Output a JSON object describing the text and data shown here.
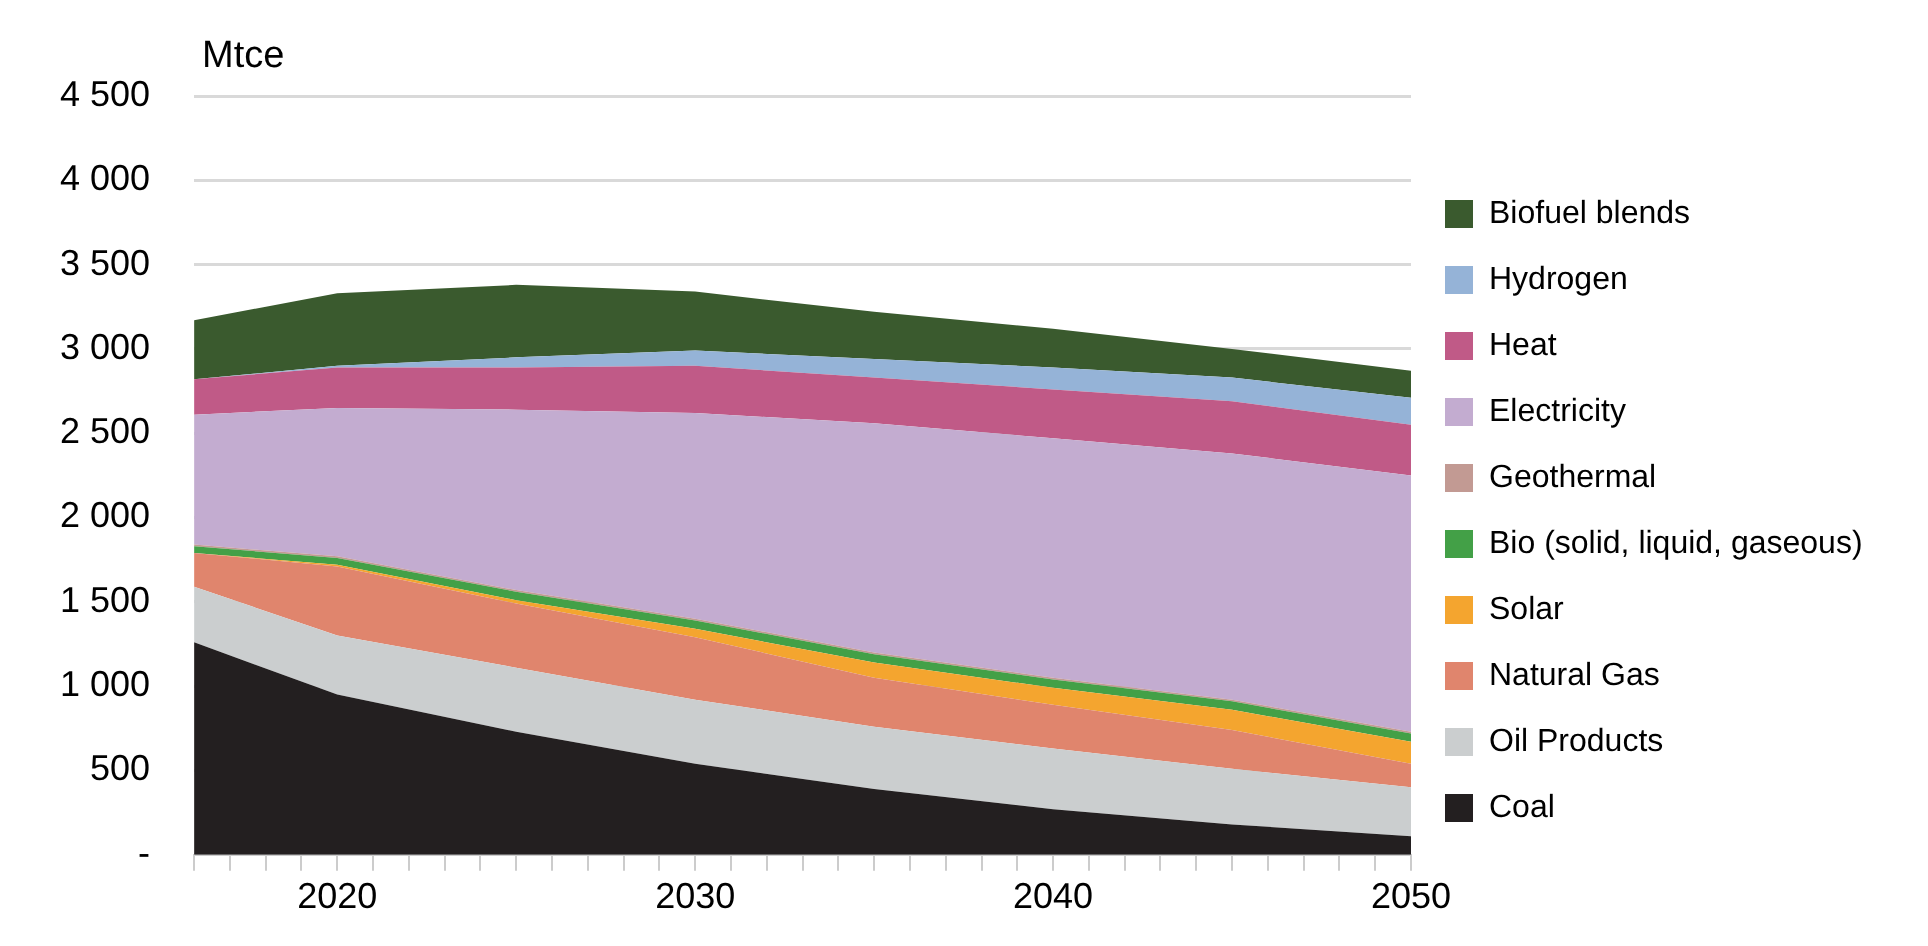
{
  "chart_data": {
    "type": "area",
    "stacked": true,
    "ylabel": "Mtce",
    "x": [
      2016,
      2020,
      2025,
      2030,
      2035,
      2040,
      2045,
      2050
    ],
    "xlim": [
      2016,
      2050
    ],
    "xticks": [
      {
        "value": 2016,
        "label": null
      },
      {
        "value": 2017,
        "label": null
      },
      {
        "value": 2018,
        "label": null
      },
      {
        "value": 2019,
        "label": null
      },
      2020,
      {
        "value": 2021,
        "label": null
      },
      {
        "value": 2022,
        "label": null
      },
      {
        "value": 2023,
        "label": null
      },
      {
        "value": 2024,
        "label": null
      },
      {
        "value": 2025,
        "label": null
      },
      {
        "value": 2026,
        "label": null
      },
      {
        "value": 2027,
        "label": null
      },
      {
        "value": 2028,
        "label": null
      },
      {
        "value": 2029,
        "label": null
      },
      2030,
      {
        "value": 2031,
        "label": null
      },
      {
        "value": 2032,
        "label": null
      },
      {
        "value": 2033,
        "label": null
      },
      {
        "value": 2034,
        "label": null
      },
      {
        "value": 2035,
        "label": null
      },
      {
        "value": 2036,
        "label": null
      },
      {
        "value": 2037,
        "label": null
      },
      {
        "value": 2038,
        "label": null
      },
      {
        "value": 2039,
        "label": null
      },
      2040,
      {
        "value": 2041,
        "label": null
      },
      {
        "value": 2042,
        "label": null
      },
      {
        "value": 2043,
        "label": null
      },
      {
        "value": 2044,
        "label": null
      },
      {
        "value": 2045,
        "label": null
      },
      {
        "value": 2046,
        "label": null
      },
      {
        "value": 2047,
        "label": null
      },
      {
        "value": 2048,
        "label": null
      },
      {
        "value": 2049,
        "label": null
      },
      2050
    ],
    "ylim": [
      0,
      4500
    ],
    "yticks": [
      {
        "value": 0,
        "label": "-"
      },
      {
        "value": 500,
        "label": "500"
      },
      {
        "value": 1000,
        "label": "1 000"
      },
      {
        "value": 1500,
        "label": "1 500"
      },
      {
        "value": 2000,
        "label": "2 000"
      },
      {
        "value": 2500,
        "label": "2 500"
      },
      {
        "value": 3000,
        "label": "3 000"
      },
      {
        "value": 3500,
        "label": "3 500"
      },
      {
        "value": 4000,
        "label": "4 000"
      },
      {
        "value": 4500,
        "label": "4 500"
      }
    ],
    "grid": "y",
    "legend": "right",
    "series": [
      {
        "name": "Coal",
        "color": "#231f20",
        "values": [
          1260,
          950,
          730,
          540,
          390,
          270,
          180,
          110
        ]
      },
      {
        "name": "Oil Products",
        "color": "#cbcecf",
        "values": [
          330,
          350,
          380,
          380,
          370,
          360,
          330,
          290
        ]
      },
      {
        "name": "Natural Gas",
        "color": "#e0856d",
        "values": [
          200,
          410,
          380,
          370,
          290,
          260,
          230,
          140
        ]
      },
      {
        "name": "Solar",
        "color": "#f4a52f",
        "values": [
          0,
          10,
          20,
          50,
          90,
          100,
          120,
          130
        ]
      },
      {
        "name": "Bio (solid, liquid, gaseous)",
        "color": "#43a047",
        "values": [
          40,
          40,
          50,
          50,
          50,
          50,
          50,
          50
        ]
      },
      {
        "name": "Geothermal",
        "color": "#c29a93",
        "values": [
          10,
          10,
          10,
          10,
          10,
          10,
          10,
          10
        ]
      },
      {
        "name": "Electricity",
        "color": "#c3acd0",
        "values": [
          770,
          880,
          1070,
          1220,
          1360,
          1420,
          1460,
          1520
        ]
      },
      {
        "name": "Heat",
        "color": "#c05a87",
        "values": [
          210,
          240,
          250,
          280,
          270,
          290,
          310,
          300
        ]
      },
      {
        "name": "Hydrogen",
        "color": "#95b3d7",
        "values": [
          0,
          10,
          60,
          90,
          110,
          130,
          140,
          160
        ]
      },
      {
        "name": "Biofuel blends",
        "color": "#3a5a2e",
        "values": [
          350,
          430,
          430,
          350,
          280,
          230,
          170,
          160
        ]
      }
    ]
  }
}
